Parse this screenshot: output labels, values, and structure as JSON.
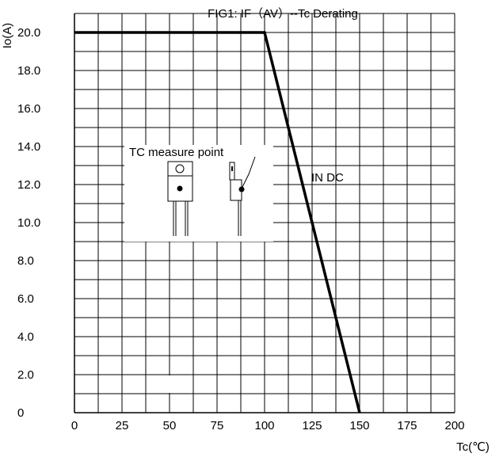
{
  "chart_data": {
    "type": "line",
    "title": "FIG1: IF（AV）--Tc  Derating",
    "xlabel": "Tc(℃)",
    "ylabel": "Io(A)",
    "xlim": [
      0,
      200
    ],
    "ylim": [
      0,
      21
    ],
    "x_ticks": [
      0,
      25,
      50,
      75,
      100,
      125,
      150,
      175,
      200
    ],
    "x_tick_labels": [
      "0",
      "25",
      "50",
      "75",
      "100",
      "125",
      "150",
      "175",
      "200"
    ],
    "y_ticks": [
      0,
      2,
      4,
      6,
      8,
      10,
      12,
      14,
      16,
      18,
      20
    ],
    "y_tick_labels": [
      "0",
      "2.0",
      "4.0",
      "6.0",
      "8.0",
      "10.0",
      "12.0",
      "14.0",
      "16.0",
      "18.0",
      "20.0"
    ],
    "grid": true,
    "series": [
      {
        "name": "IN DC",
        "x": [
          0,
          100,
          150
        ],
        "y": [
          20,
          20,
          0
        ]
      }
    ],
    "annotations": [
      {
        "text": "TC measure point"
      },
      {
        "text": "IN DC"
      }
    ],
    "colors": {
      "line": "#000000",
      "grid": "#000000",
      "background": "#ffffff"
    }
  }
}
